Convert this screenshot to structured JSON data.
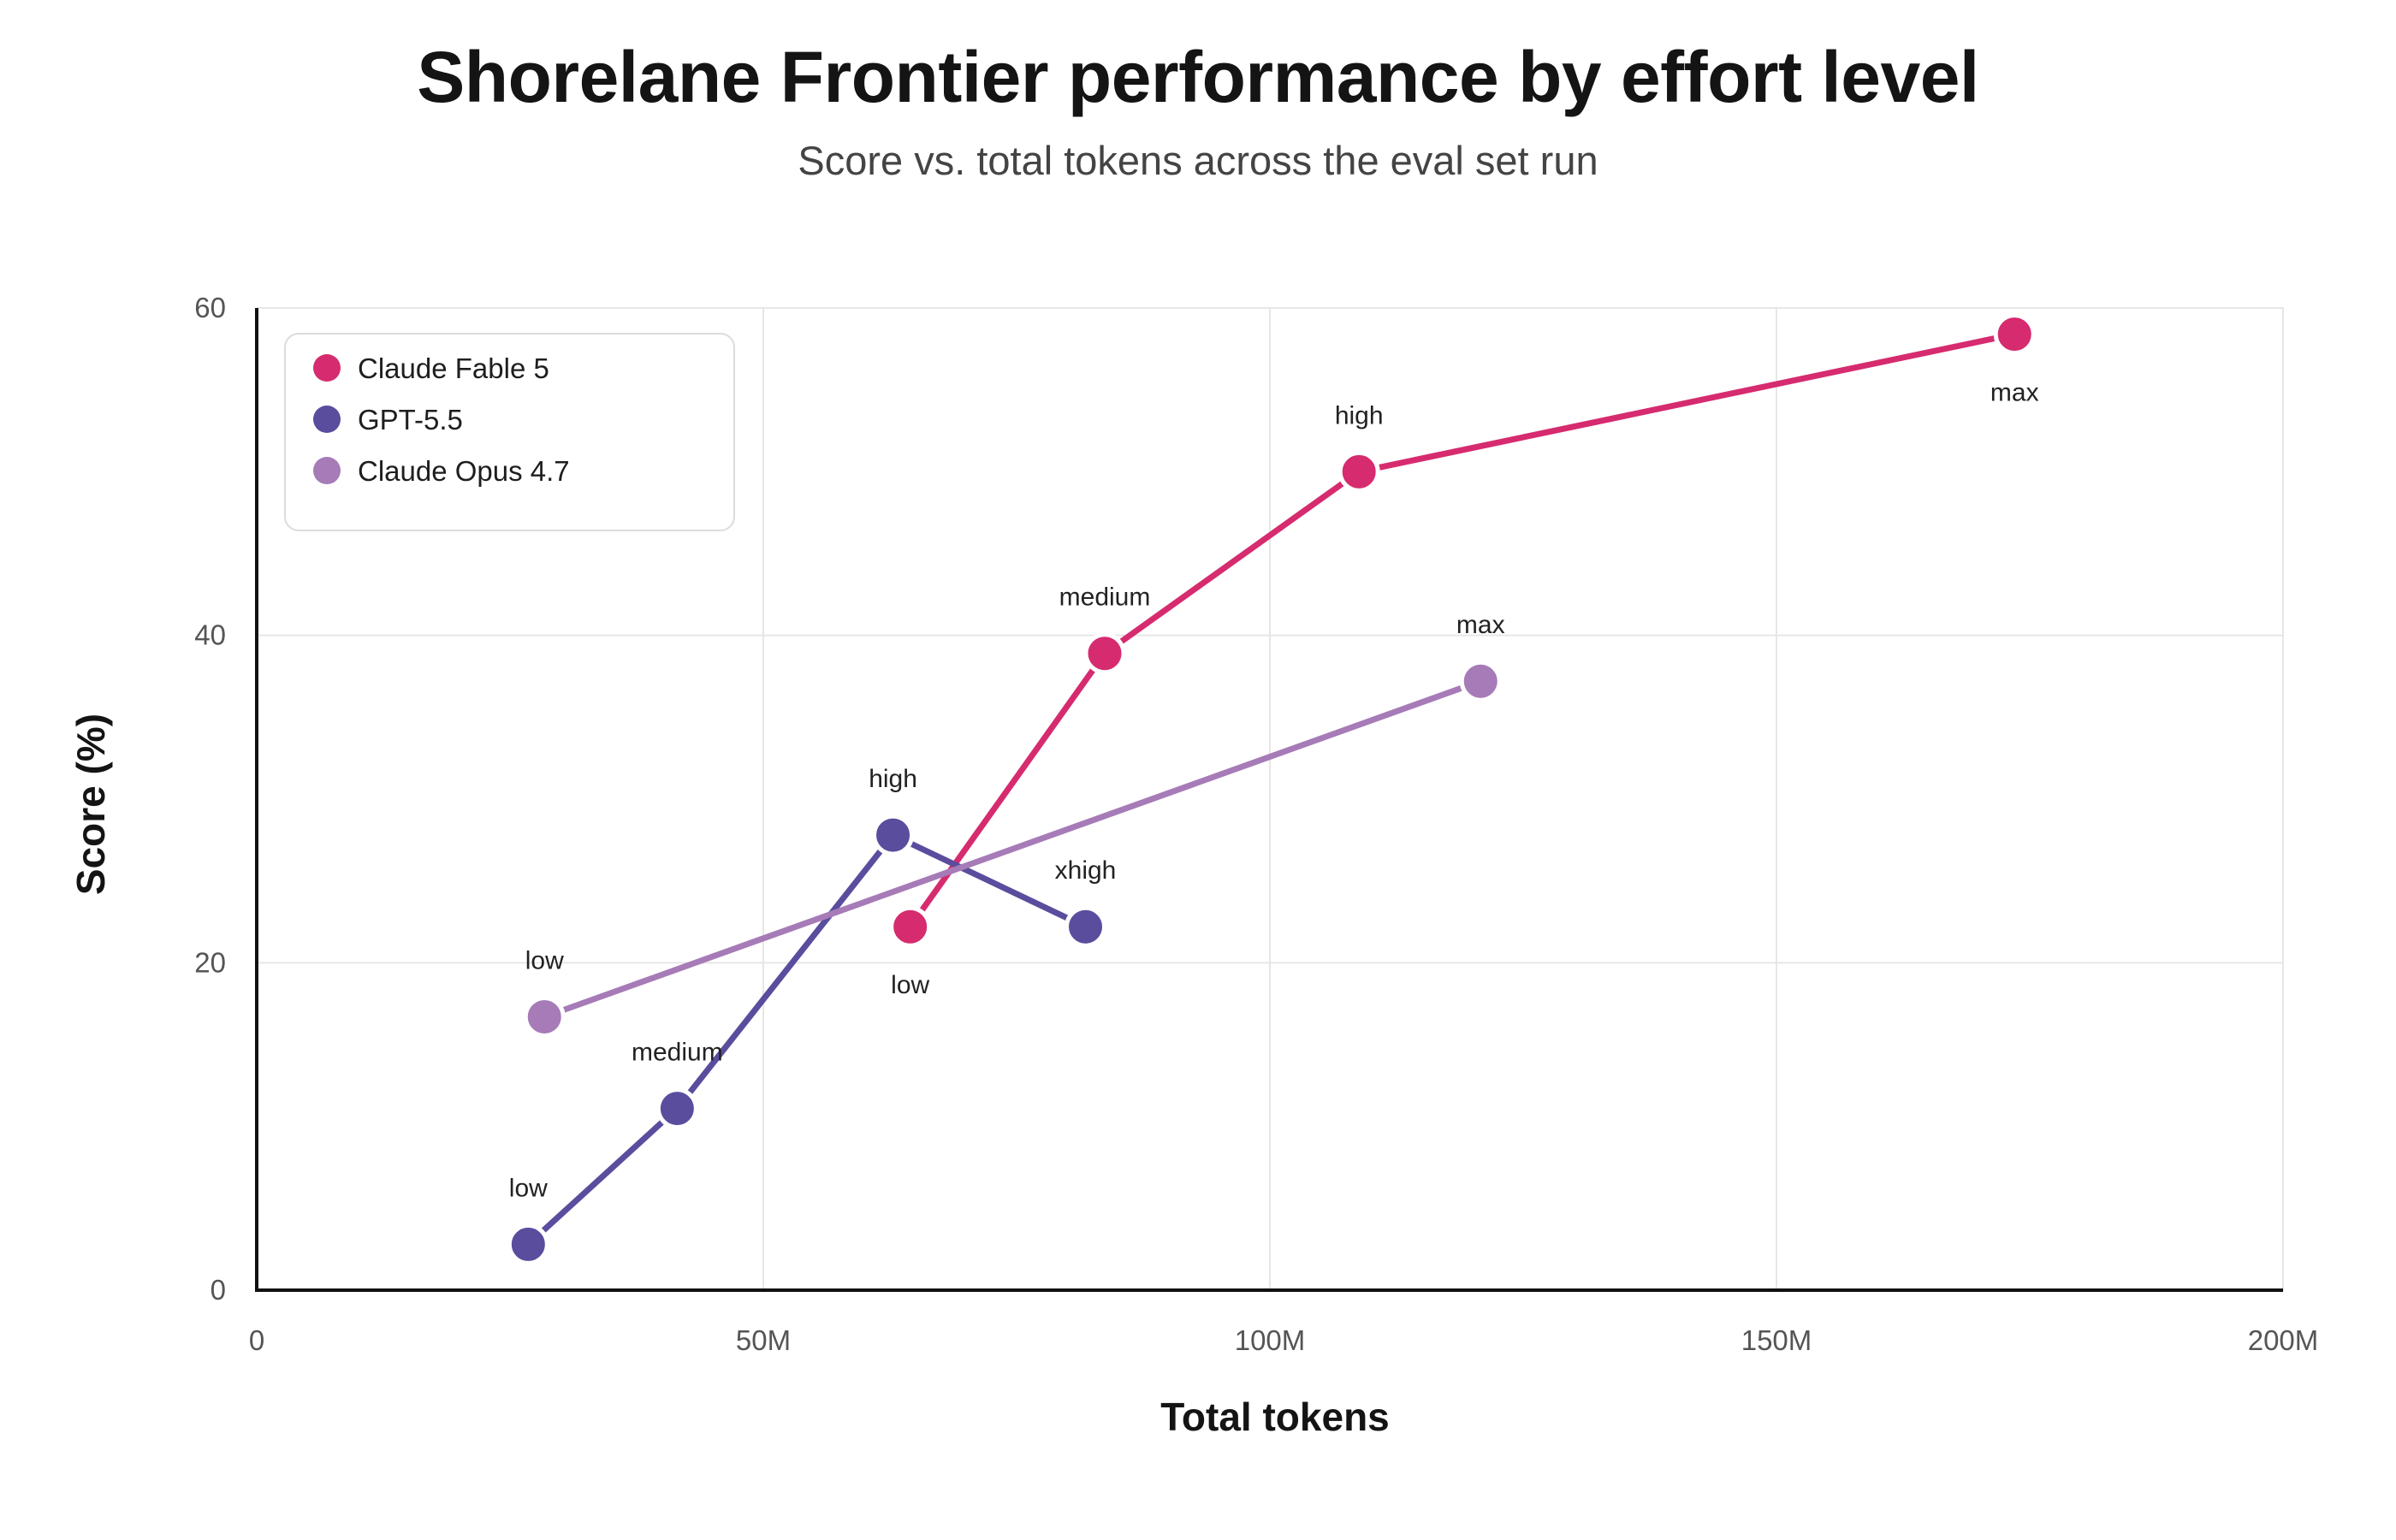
{
  "header": {
    "title": "Shorelane Frontier performance by effort level",
    "subtitle": "Score vs. total tokens across the eval set run"
  },
  "chart_data": {
    "type": "line",
    "title": "Shorelane Frontier performance by effort level",
    "subtitle": "Score vs. total tokens across the eval set run",
    "xlabel": "Total tokens",
    "ylabel": "Score (%)",
    "xlim": [
      0,
      200000000
    ],
    "ylim": [
      0,
      60
    ],
    "x_ticks": [
      {
        "value": 0,
        "label": "0"
      },
      {
        "value": 50000000,
        "label": "50M"
      },
      {
        "value": 100000000,
        "label": "100M"
      },
      {
        "value": 150000000,
        "label": "150M"
      },
      {
        "value": 200000000,
        "label": "200M"
      }
    ],
    "y_ticks": [
      {
        "value": 0,
        "label": "0"
      },
      {
        "value": 20,
        "label": "20"
      },
      {
        "value": 40,
        "label": "40"
      },
      {
        "value": 60,
        "label": "60"
      }
    ],
    "grid": true,
    "legend": {
      "position": "top-left"
    },
    "series": [
      {
        "name": "Claude Fable 5",
        "color": "#d62b6f",
        "points": [
          {
            "x": 64500000,
            "y": 22.2,
            "label": "low",
            "label_pos": "below"
          },
          {
            "x": 83700000,
            "y": 38.9,
            "label": "medium",
            "label_pos": "above"
          },
          {
            "x": 108800000,
            "y": 50.0,
            "label": "high",
            "label_pos": "above"
          },
          {
            "x": 173500000,
            "y": 58.4,
            "label": "max",
            "label_pos": "below"
          }
        ]
      },
      {
        "name": "GPT-5.5",
        "color": "#5a4d9e",
        "points": [
          {
            "x": 26800000,
            "y": 2.8,
            "label": "low",
            "label_pos": "above"
          },
          {
            "x": 41500000,
            "y": 11.1,
            "label": "medium",
            "label_pos": "above"
          },
          {
            "x": 62800000,
            "y": 27.8,
            "label": "high",
            "label_pos": "above"
          },
          {
            "x": 81800000,
            "y": 22.2,
            "label": "xhigh",
            "label_pos": "above"
          }
        ]
      },
      {
        "name": "Claude Opus 4.7",
        "color": "#a67bb7",
        "points": [
          {
            "x": 28400000,
            "y": 16.7,
            "label": "low",
            "label_pos": "above"
          },
          {
            "x": 120800000,
            "y": 37.2,
            "label": "max",
            "label_pos": "above"
          }
        ]
      }
    ]
  }
}
